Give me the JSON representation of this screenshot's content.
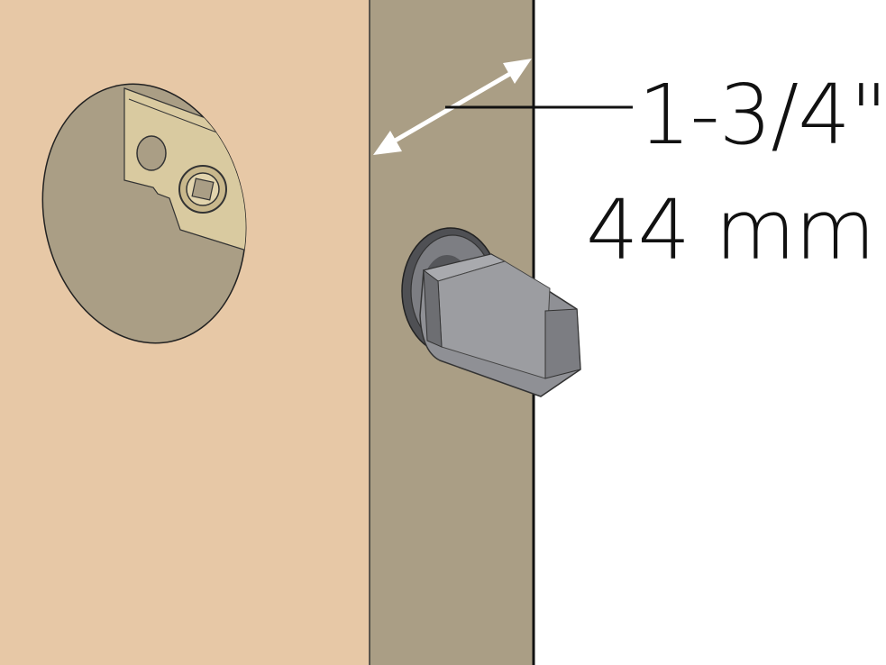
{
  "dimension": {
    "imperial": "1-3/4\"",
    "metric": "44 mm"
  },
  "colors": {
    "door_face": "#e7c8a6",
    "door_edge": "#aa9e85",
    "background": "#ffffff",
    "bore_hole": "#aa9e85",
    "latch_plate": "#d8c9a0",
    "knob_body": "#8f9095",
    "knob_dark": "#5e5f63",
    "arrow": "#ffffff",
    "line": "#111111"
  },
  "icons": {
    "measure": "double-arrow-icon",
    "latch": "latch-bolt-icon",
    "hole": "bore-hole-icon"
  }
}
